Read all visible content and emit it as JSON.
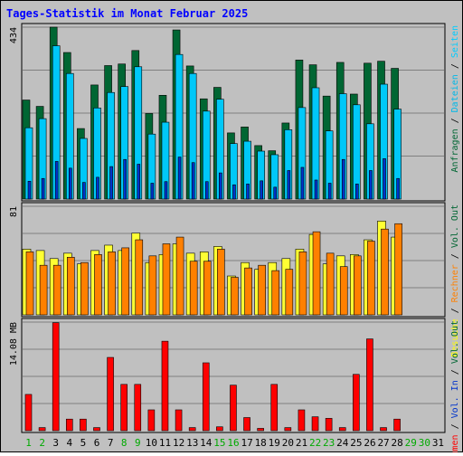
{
  "title": "Tages-Statistik im Monat Februar 2025",
  "chart_data": [
    {
      "type": "bar",
      "panel": "top",
      "ytick_label": "434",
      "ymax": 434,
      "categories": [
        "1",
        "2",
        "3",
        "4",
        "5",
        "6",
        "7",
        "8",
        "9",
        "10",
        "11",
        "12",
        "13",
        "14",
        "15",
        "16",
        "17",
        "18",
        "19",
        "20",
        "21",
        "22",
        "23",
        "24",
        "25",
        "26",
        "27",
        "28",
        "29",
        "30",
        "31"
      ],
      "series": [
        {
          "name": "Anfragen",
          "color": "#006633",
          "values": [
            250,
            234,
            434,
            370,
            178,
            288,
            337,
            341,
            375,
            216,
            262,
            427,
            336,
            253,
            282,
            167,
            182,
            135,
            122,
            192,
            351,
            339,
            260,
            345,
            265,
            343,
            348,
            330,
            null,
            null,
            null
          ]
        },
        {
          "name": "Dateien",
          "color": "#00c8f8",
          "values": [
            180,
            203,
            387,
            317,
            153,
            230,
            269,
            284,
            334,
            164,
            194,
            365,
            317,
            222,
            252,
            140,
            146,
            121,
            112,
            175,
            231,
            281,
            172,
            266,
            238,
            190,
            290,
            227,
            null,
            null,
            null
          ]
        },
        {
          "name": "Seiten",
          "color": "#0033cc",
          "values": [
            45,
            52,
            95,
            78,
            42,
            55,
            82,
            100,
            88,
            40,
            44,
            106,
            92,
            44,
            66,
            36,
            38,
            46,
            30,
            72,
            80,
            48,
            40,
            100,
            38,
            72,
            102,
            52,
            null,
            null,
            null
          ]
        }
      ]
    },
    {
      "type": "bar",
      "panel": "middle",
      "ytick_label": "81",
      "ymax": 81,
      "categories": [
        "1",
        "2",
        "3",
        "4",
        "5",
        "6",
        "7",
        "8",
        "9",
        "10",
        "11",
        "12",
        "13",
        "14",
        "15",
        "16",
        "17",
        "18",
        "19",
        "20",
        "21",
        "22",
        "23",
        "24",
        "25",
        "26",
        "27",
        "28",
        "29",
        "30",
        "31"
      ],
      "series": [
        {
          "name": "Besuche",
          "color": "#ffff33",
          "values": [
            49,
            48,
            42,
            46,
            38,
            48,
            52,
            48,
            61,
            39,
            45,
            53,
            46,
            47,
            51,
            29,
            39,
            34,
            39,
            42,
            49,
            60,
            38,
            44,
            45,
            56,
            70,
            58,
            null,
            null,
            null
          ]
        },
        {
          "name": "Rechner",
          "color": "#ff8000",
          "values": [
            47,
            37,
            37,
            43,
            39,
            45,
            47,
            50,
            56,
            44,
            53,
            58,
            40,
            40,
            49,
            28,
            35,
            37,
            33,
            34,
            47,
            62,
            46,
            36,
            44,
            55,
            64,
            68,
            null,
            null,
            null
          ]
        }
      ]
    },
    {
      "type": "bar",
      "panel": "bottom",
      "ytick_label": "14.08 MB",
      "ymax": 14.08,
      "categories": [
        "1",
        "2",
        "3",
        "4",
        "5",
        "6",
        "7",
        "8",
        "9",
        "10",
        "11",
        "12",
        "13",
        "14",
        "15",
        "16",
        "17",
        "18",
        "19",
        "20",
        "21",
        "22",
        "23",
        "24",
        "25",
        "26",
        "27",
        "28",
        "29",
        "30",
        "31"
      ],
      "series": [
        {
          "name": "Volumen",
          "color": "#ff0000",
          "values": [
            4.7,
            0.4,
            14.0,
            1.5,
            1.5,
            0.4,
            9.5,
            6.0,
            6.0,
            2.7,
            11.6,
            2.7,
            0.4,
            8.8,
            0.5,
            5.9,
            1.7,
            0.3,
            6.0,
            0.4,
            2.7,
            1.8,
            1.6,
            0.4,
            7.3,
            11.9,
            0.4,
            1.5,
            null,
            null,
            null
          ]
        }
      ]
    }
  ],
  "right_labels": {
    "top": [
      {
        "text": "Anfragen",
        "color": "#006633"
      },
      {
        "text": " / ",
        "color": "#000000"
      },
      {
        "text": "Dateien",
        "color": "#00b8e8"
      },
      {
        "text": " / ",
        "color": "#000000"
      },
      {
        "text": "Seiten",
        "color": "#00ccff"
      }
    ],
    "middle": [
      {
        "text": "Besuche",
        "color": "#ffff00"
      },
      {
        "text": " / ",
        "color": "#000000"
      },
      {
        "text": "Rechner",
        "color": "#ff8000"
      },
      {
        "text": " / ",
        "color": "#000000"
      },
      {
        "text": "Vol. Out",
        "color": "#006633"
      }
    ],
    "bottom": [
      {
        "text": "Volumen",
        "color": "#ff0000"
      },
      {
        "text": " / ",
        "color": "#000000"
      },
      {
        "text": "Vol. In",
        "color": "#0033cc"
      },
      {
        "text": " / ",
        "color": "#000000"
      },
      {
        "text": "Vol. Out",
        "color": "#006633"
      }
    ]
  },
  "weekend_days": [
    1,
    2,
    8,
    9,
    15,
    16,
    22,
    23,
    29,
    30
  ],
  "colors": {
    "background": "#c0c0c0",
    "title": "#0000ff",
    "weekday_label": "#000000",
    "weekend_label": "#00aa00",
    "panel_border": "#000000",
    "gridline": "#808080"
  }
}
